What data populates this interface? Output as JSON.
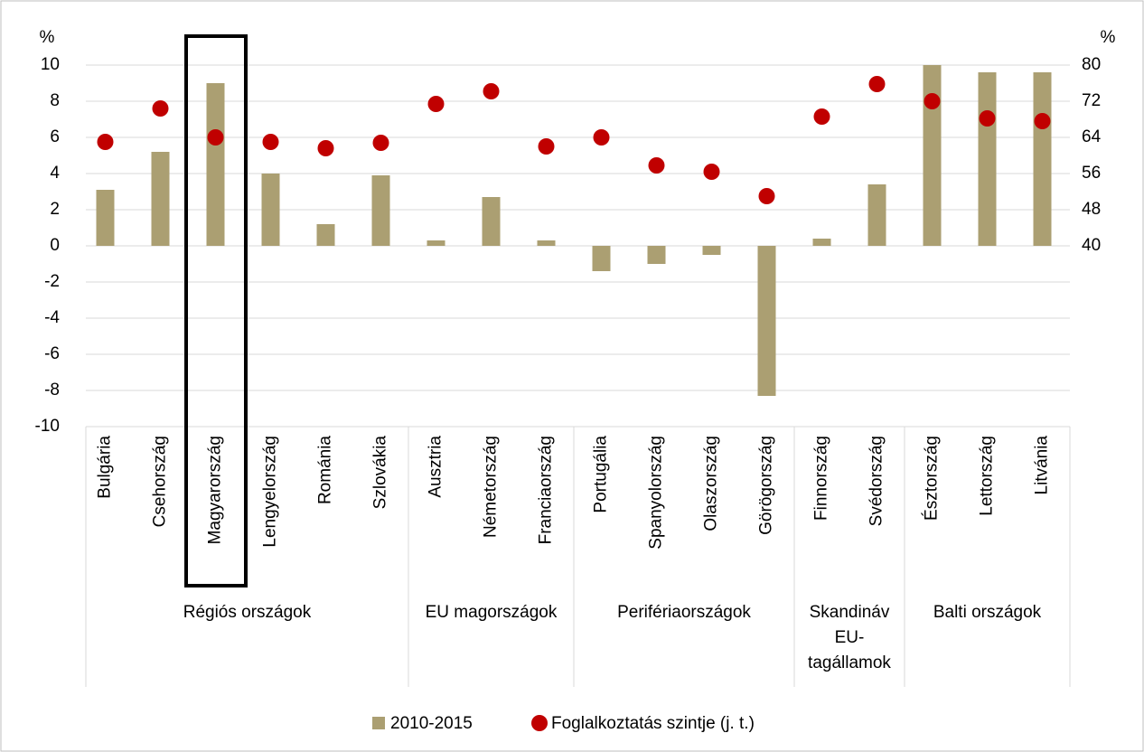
{
  "chart_data": {
    "type": "bar",
    "y_label": "%",
    "y2_label": "%",
    "categories": [
      "Bulgária",
      "Csehország",
      "Magyarország",
      "Lengyelország",
      "Románia",
      "Szlovákia",
      "Ausztria",
      "Németország",
      "Franciaország",
      "Portugália",
      "Spanyolország",
      "Olaszország",
      "Görögország",
      "Finnország",
      "Svédország",
      "Észtország",
      "Lettország",
      "Litvánia"
    ],
    "groups": [
      {
        "name": "Régiós országok",
        "count": 6
      },
      {
        "name": "EU magországok",
        "count": 3
      },
      {
        "name": "Perifériaországok",
        "count": 4
      },
      {
        "name": "Skandináv EU-tagállamok",
        "count": 2
      },
      {
        "name": "Balti országok",
        "count": 3
      }
    ],
    "series": [
      {
        "name": "2010-2015",
        "type": "bar",
        "color": "#ab9f72",
        "values": [
          3.1,
          5.2,
          9.0,
          4.0,
          1.2,
          3.9,
          0.3,
          2.7,
          0.3,
          -1.4,
          -1.0,
          -0.5,
          -8.3,
          0.4,
          3.4,
          10.0,
          9.6,
          9.6
        ]
      },
      {
        "name": "Foglalkoztatás szintje (j. t.)",
        "type": "scatter",
        "axis": "y2",
        "color": "#c00000",
        "values": [
          63.0,
          70.4,
          64.0,
          63.0,
          61.6,
          62.8,
          71.4,
          74.2,
          62.0,
          64.0,
          57.8,
          56.4,
          51.0,
          68.6,
          75.8,
          72.0,
          68.2,
          67.6
        ]
      }
    ],
    "ylim": [
      -10,
      10
    ],
    "yticks": [
      -10,
      -8,
      -6,
      -4,
      -2,
      0,
      2,
      4,
      6,
      8,
      10
    ],
    "y2lim": [
      0,
      80
    ],
    "y2ticks": [
      40,
      48,
      56,
      64,
      72,
      80
    ],
    "grid": true,
    "legend": "bottom"
  }
}
